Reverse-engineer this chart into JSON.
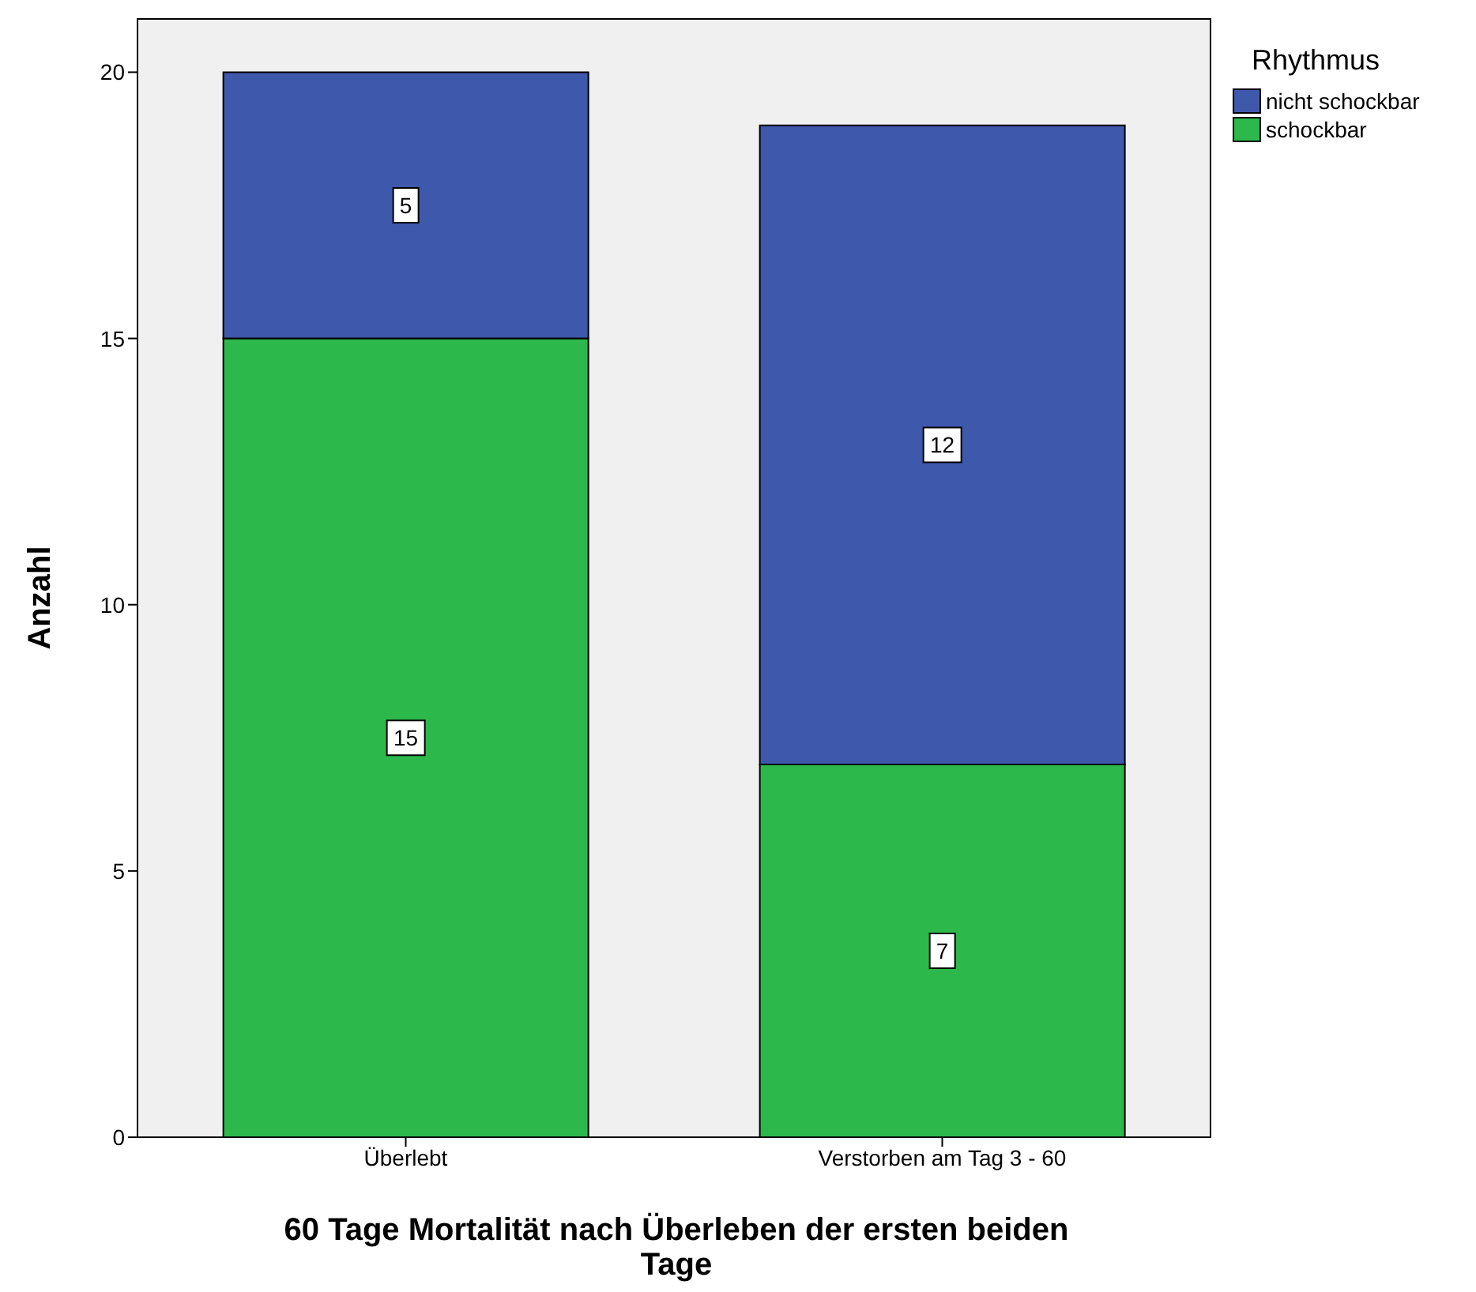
{
  "chart_data": {
    "type": "bar",
    "xlabel": "60 Tage Mortalität nach Überleben der ersten beiden Tage",
    "ylabel": "Anzahl",
    "legend_title": "Rhythmus",
    "categories": [
      "Überlebt",
      "Verstorben am Tag 3 - 60"
    ],
    "stacked": true,
    "data_labels": true,
    "legend": "top right",
    "ylim": [
      0,
      21
    ],
    "yticks": [
      0,
      5,
      10,
      15,
      20
    ],
    "series": [
      {
        "name": "schockbar",
        "color": "#2db84b",
        "values": [
          15,
          7
        ]
      },
      {
        "name": "nicht schockbar",
        "color": "#3e58ac",
        "values": [
          5,
          12
        ]
      }
    ]
  }
}
